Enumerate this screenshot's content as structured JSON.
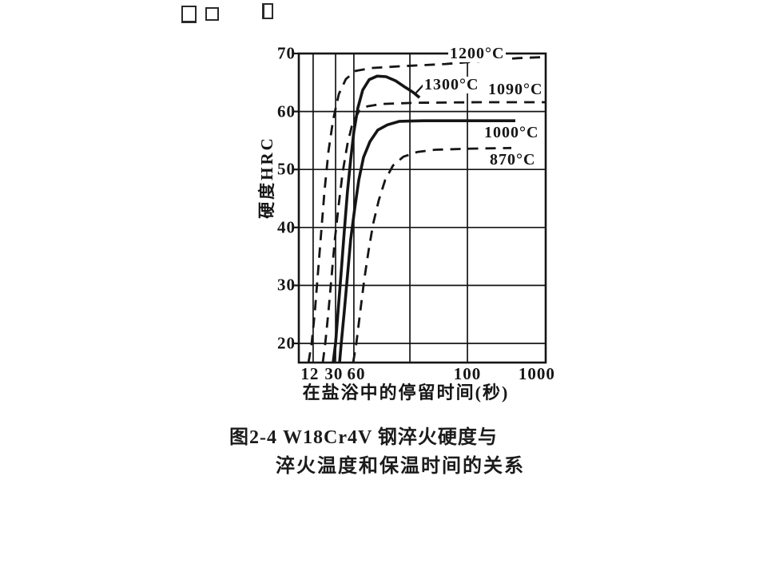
{
  "colors": {
    "background": "#ffffff",
    "ink": "#151515"
  },
  "chart_data": {
    "type": "line",
    "title": "",
    "x_axis_label": "在盐浴中的停留时间(秒)",
    "y_axis_label": "硬度HRC",
    "x_scale": "schematic-log",
    "y_range": [
      20,
      70
    ],
    "grid": "on",
    "x_ticks": [
      {
        "label": "12",
        "f": 0.045
      },
      {
        "label": "30",
        "f": 0.142
      },
      {
        "label": "60",
        "f": 0.233
      },
      {
        "label": "100",
        "f": 0.683
      },
      {
        "label": "1000",
        "f": 0.964
      }
    ],
    "grid_f": [
      0.058,
      0.149,
      0.223,
      0.45,
      0.683
    ],
    "y_ticks": [
      70,
      60,
      50,
      40,
      30,
      20
    ],
    "series": [
      {
        "name": "1200°C",
        "line": "dashed",
        "plateau_hrc": 68,
        "points_f_hrc": [
          [
            0.039,
            16.7
          ],
          [
            0.052,
            20.0
          ],
          [
            0.065,
            25.5
          ],
          [
            0.078,
            32.4
          ],
          [
            0.091,
            39.3
          ],
          [
            0.104,
            46.2
          ],
          [
            0.12,
            53.1
          ],
          [
            0.139,
            58.6
          ],
          [
            0.162,
            63.0
          ],
          [
            0.191,
            65.6
          ],
          [
            0.23,
            67.0
          ],
          [
            0.294,
            67.5
          ],
          [
            0.408,
            67.8
          ],
          [
            0.553,
            68.1
          ],
          [
            0.595,
            68.2
          ],
          [
            0.887,
            69.2
          ],
          [
            1.0,
            69.4
          ]
        ]
      },
      {
        "name": "1300°C",
        "line": "solid",
        "peak_hrc": 66,
        "end_hrc": 62.4,
        "points_f_hrc": [
          [
            0.139,
            16.7
          ],
          [
            0.149,
            20.0
          ],
          [
            0.159,
            25.5
          ],
          [
            0.172,
            32.4
          ],
          [
            0.184,
            39.3
          ],
          [
            0.197,
            46.2
          ],
          [
            0.21,
            51.7
          ],
          [
            0.223,
            56.5
          ],
          [
            0.239,
            60.6
          ],
          [
            0.259,
            63.7
          ],
          [
            0.285,
            65.5
          ],
          [
            0.317,
            66.1
          ],
          [
            0.353,
            66.0
          ],
          [
            0.392,
            65.3
          ],
          [
            0.43,
            64.2
          ],
          [
            0.463,
            63.3
          ],
          [
            0.489,
            62.4
          ]
        ]
      },
      {
        "name": "1090°C",
        "line": "dashed",
        "plateau_hrc": 61.5,
        "points_f_hrc": [
          [
            0.097,
            16.7
          ],
          [
            0.107,
            20.0
          ],
          [
            0.12,
            25.5
          ],
          [
            0.133,
            31.7
          ],
          [
            0.146,
            37.9
          ],
          [
            0.162,
            44.1
          ],
          [
            0.178,
            49.6
          ],
          [
            0.197,
            54.4
          ],
          [
            0.217,
            57.9
          ],
          [
            0.243,
            60.0
          ],
          [
            0.278,
            60.9
          ],
          [
            0.337,
            61.3
          ],
          [
            0.472,
            61.5
          ],
          [
            0.731,
            61.6
          ],
          [
            1.0,
            61.6
          ]
        ]
      },
      {
        "name": "1000°C",
        "line": "solid",
        "plateau_hrc": 58.4,
        "points_f_hrc": [
          [
            0.165,
            16.7
          ],
          [
            0.172,
            20.0
          ],
          [
            0.184,
            25.5
          ],
          [
            0.197,
            31.7
          ],
          [
            0.21,
            37.9
          ],
          [
            0.227,
            43.4
          ],
          [
            0.243,
            48.2
          ],
          [
            0.262,
            52.1
          ],
          [
            0.288,
            54.8
          ],
          [
            0.32,
            56.8
          ],
          [
            0.359,
            57.7
          ],
          [
            0.408,
            58.3
          ],
          [
            0.505,
            58.4
          ],
          [
            0.667,
            58.4
          ],
          [
            0.877,
            58.4
          ]
        ]
      },
      {
        "name": "870°C",
        "line": "dashed",
        "plateau_hrc": 53.7,
        "points_f_hrc": [
          [
            0.22,
            16.7
          ],
          [
            0.233,
            20.0
          ],
          [
            0.249,
            25.5
          ],
          [
            0.265,
            31.0
          ],
          [
            0.282,
            35.8
          ],
          [
            0.301,
            40.6
          ],
          [
            0.324,
            44.7
          ],
          [
            0.35,
            48.2
          ],
          [
            0.382,
            50.7
          ],
          [
            0.424,
            52.2
          ],
          [
            0.479,
            53.0
          ],
          [
            0.553,
            53.4
          ],
          [
            0.699,
            53.6
          ],
          [
            0.861,
            53.7
          ]
        ]
      }
    ]
  },
  "caption": {
    "line1": "图2-4  W18Cr4V 钢淬火硬度与",
    "line2": "淬火温度和保温时间的关系"
  }
}
